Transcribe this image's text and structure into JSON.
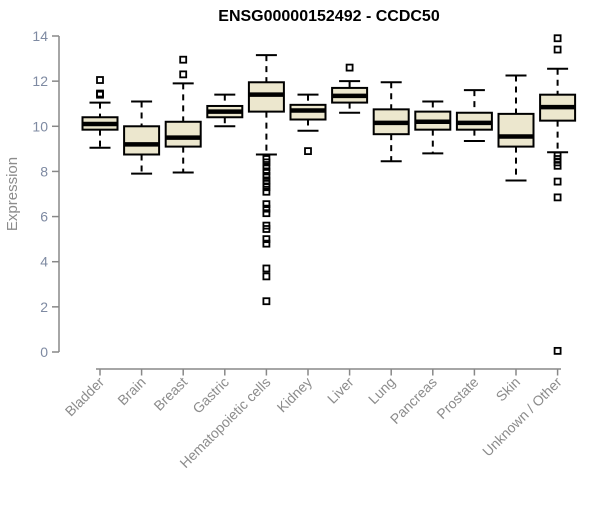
{
  "chart_data": {
    "type": "boxplot",
    "title": "ENSG00000152492 - CCDC50",
    "xlabel": "",
    "ylabel": "Expression",
    "ylim": [
      0,
      14
    ],
    "y_ticks": [
      0,
      2,
      4,
      6,
      8,
      10,
      12,
      14
    ],
    "grid": "off",
    "legend": "none",
    "categories": [
      "Bladder",
      "Brain",
      "Breast",
      "Gastric",
      "Hematopoietic cells",
      "Kidney",
      "Liver",
      "Lung",
      "Pancreas",
      "Prostate",
      "Skin",
      "Unknown / Other"
    ],
    "boxes": [
      {
        "category": "Bladder",
        "whisker_low": 9.05,
        "q1": 9.85,
        "median": 10.1,
        "q3": 10.4,
        "whisker_high": 11.05,
        "outliers": [
          11.4,
          11.45,
          12.05
        ]
      },
      {
        "category": "Brain",
        "whisker_low": 7.9,
        "q1": 8.75,
        "median": 9.2,
        "q3": 10.0,
        "whisker_high": 11.1,
        "outliers": []
      },
      {
        "category": "Breast",
        "whisker_low": 7.95,
        "q1": 9.1,
        "median": 9.5,
        "q3": 10.2,
        "whisker_high": 11.9,
        "outliers": [
          12.3,
          12.95
        ]
      },
      {
        "category": "Gastric",
        "whisker_low": 10.0,
        "q1": 10.4,
        "median": 10.65,
        "q3": 10.9,
        "whisker_high": 11.4,
        "outliers": []
      },
      {
        "category": "Hematopoietic cells",
        "whisker_low": 8.75,
        "q1": 10.65,
        "median": 11.4,
        "q3": 11.95,
        "whisker_high": 13.15,
        "outliers": [
          8.55,
          8.4,
          8.2,
          8.0,
          7.8,
          7.6,
          7.45,
          7.3,
          7.1,
          6.55,
          6.35,
          6.15,
          5.6,
          5.45,
          5.0,
          4.8,
          3.7,
          3.35,
          2.25
        ]
      },
      {
        "category": "Kidney",
        "whisker_low": 9.8,
        "q1": 10.3,
        "median": 10.7,
        "q3": 10.95,
        "whisker_high": 11.4,
        "outliers": [
          8.9
        ]
      },
      {
        "category": "Liver",
        "whisker_low": 10.6,
        "q1": 11.05,
        "median": 11.35,
        "q3": 11.7,
        "whisker_high": 12.0,
        "outliers": [
          12.6
        ]
      },
      {
        "category": "Lung",
        "whisker_low": 8.45,
        "q1": 9.65,
        "median": 10.15,
        "q3": 10.75,
        "whisker_high": 11.95,
        "outliers": []
      },
      {
        "category": "Pancreas",
        "whisker_low": 8.8,
        "q1": 9.85,
        "median": 10.2,
        "q3": 10.65,
        "whisker_high": 11.1,
        "outliers": []
      },
      {
        "category": "Prostate",
        "whisker_low": 9.35,
        "q1": 9.85,
        "median": 10.15,
        "q3": 10.6,
        "whisker_high": 11.6,
        "outliers": []
      },
      {
        "category": "Skin",
        "whisker_low": 7.6,
        "q1": 9.1,
        "median": 9.55,
        "q3": 10.55,
        "whisker_high": 12.25,
        "outliers": []
      },
      {
        "category": "Unknown / Other",
        "whisker_low": 8.85,
        "q1": 10.25,
        "median": 10.85,
        "q3": 11.4,
        "whisker_high": 12.55,
        "outliers": [
          13.9,
          13.4,
          8.7,
          8.55,
          8.4,
          8.25,
          7.55,
          6.85,
          0.05
        ]
      }
    ],
    "colors": {
      "box_fill": "#ECE7CE",
      "box_border": "#000000",
      "median": "#000000",
      "axis_line": "#888888",
      "y_tick_label": "#7E8AA2",
      "category_label": "#8C8C8C",
      "axis_title": "#8C8C8C",
      "title": "#000000",
      "background": "#FFFFFF"
    }
  }
}
